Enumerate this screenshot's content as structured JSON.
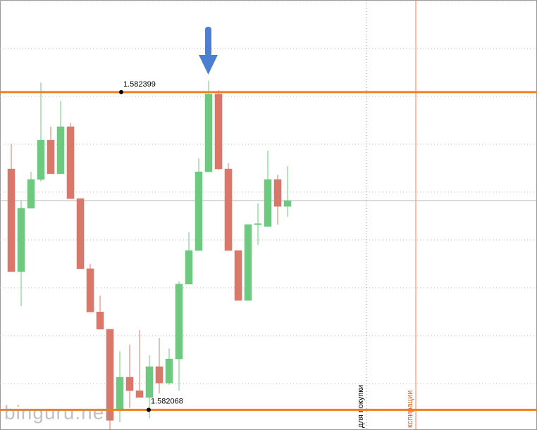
{
  "chart_data": {
    "type": "candlestick",
    "open": [
      1.582319,
      1.582212,
      1.582278,
      1.582308,
      1.582349,
      1.582314,
      1.582363,
      1.582288,
      1.582215,
      1.58217,
      1.582152,
      1.582068,
      1.582102,
      1.582088,
      1.582081,
      1.582113,
      1.582096,
      1.582121,
      1.582199,
      1.582234,
      1.582316,
      1.582397,
      1.582319,
      1.582234,
      1.582182,
      1.582261,
      1.582259,
      1.582308,
      1.58228
    ],
    "high": [
      1.582345,
      1.582286,
      1.582316,
      1.582409,
      1.582363,
      1.58239,
      1.582367,
      1.582288,
      1.58222,
      1.582187,
      1.582152,
      1.582129,
      1.582136,
      1.582151,
      1.582125,
      1.582143,
      1.582132,
      1.582202,
      1.582253,
      1.58233,
      1.582411,
      1.582401,
      1.582325,
      1.582234,
      1.582261,
      1.582283,
      1.582338,
      1.582313,
      1.582322
    ],
    "low": [
      1.582212,
      1.582176,
      1.582278,
      1.582306,
      1.582314,
      1.582314,
      1.582288,
      1.582215,
      1.58217,
      1.582152,
      1.582047,
      1.582055,
      1.58207,
      1.582081,
      1.582059,
      1.582085,
      1.582094,
      1.582088,
      1.582199,
      1.582234,
      1.582316,
      1.582318,
      1.582234,
      1.582182,
      1.582182,
      1.58224,
      1.582259,
      1.582261,
      1.582269
    ],
    "close": [
      1.582212,
      1.582278,
      1.582308,
      1.582349,
      1.582314,
      1.582363,
      1.582288,
      1.582215,
      1.58217,
      1.582152,
      1.582057,
      1.582102,
      1.582088,
      1.582081,
      1.582113,
      1.582096,
      1.582121,
      1.582199,
      1.582234,
      1.582316,
      1.582397,
      1.582319,
      1.582234,
      1.582182,
      1.582261,
      1.582262,
      1.582308,
      1.58228,
      1.582286
    ],
    "up_color": "#6cc97f",
    "down_color": "#d9776b",
    "ylim": [
      1.582047,
      1.582495
    ],
    "levels": [
      {
        "value": 1.582399,
        "label": "1.582399"
      },
      {
        "value": 1.582068,
        "label": "1.582068"
      }
    ],
    "level_color": "#f57f17",
    "buy_label": "для покупки",
    "expiry_label": "кспирации",
    "watermark": "binguru.net"
  }
}
